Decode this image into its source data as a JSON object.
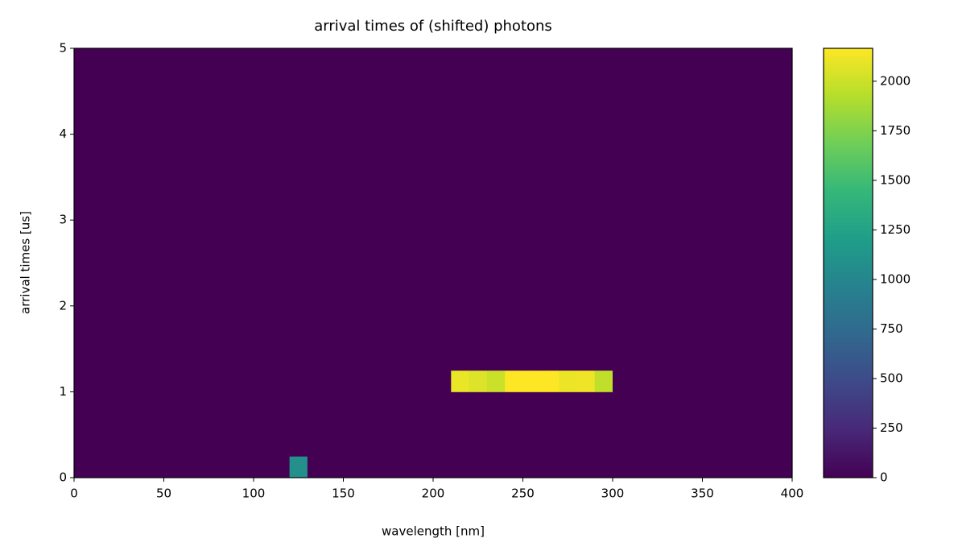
{
  "chart_data": {
    "type": "heatmap",
    "title": "arrival times of (shifted) photons",
    "x_label": "wavelength [nm]",
    "y_label": "arrival times [us]",
    "colormap": "viridis",
    "xbins": [
      0,
      10,
      20,
      30,
      40,
      50,
      60,
      70,
      80,
      90,
      100,
      110,
      120,
      130,
      140,
      150,
      160,
      170,
      180,
      190,
      200,
      210,
      220,
      230,
      240,
      250,
      260,
      270,
      280,
      290,
      300,
      310,
      320,
      330,
      340,
      350,
      360,
      370,
      380,
      390,
      400
    ],
    "ybins": [
      0,
      0.25,
      0.5,
      0.75,
      1,
      1.25,
      1.5,
      1.75,
      2,
      2.25,
      2.5,
      2.75,
      3,
      3.25,
      3.5,
      3.75,
      4,
      4.25,
      4.5,
      4.75,
      5
    ],
    "xlim": [
      0,
      400
    ],
    "xticks": [
      0,
      50,
      100,
      150,
      200,
      250,
      300,
      350,
      400
    ],
    "ylim": [
      0,
      5
    ],
    "yticks": [
      0,
      1,
      2,
      3,
      4,
      5
    ],
    "clim": [
      0,
      2166
    ],
    "cticks": [
      0,
      250,
      500,
      750,
      1000,
      1250,
      1500,
      1750,
      2000
    ],
    "z": [
      [
        0,
        0,
        0,
        0,
        0,
        0,
        0,
        0,
        0,
        0,
        0,
        0,
        1080,
        0,
        0,
        0,
        0,
        0,
        0,
        0,
        0,
        0,
        0,
        0,
        0,
        0,
        0,
        0,
        0,
        0,
        0,
        0,
        0,
        0,
        0,
        0,
        0,
        0,
        0,
        0
      ],
      [
        0,
        0,
        0,
        0,
        0,
        0,
        0,
        0,
        0,
        0,
        0,
        0,
        0,
        0,
        0,
        0,
        0,
        0,
        0,
        0,
        0,
        0,
        0,
        0,
        0,
        0,
        0,
        0,
        0,
        0,
        0,
        0,
        0,
        0,
        0,
        0,
        0,
        0,
        0,
        0
      ],
      [
        0,
        0,
        0,
        0,
        0,
        0,
        0,
        0,
        0,
        0,
        0,
        0,
        0,
        0,
        0,
        0,
        0,
        0,
        0,
        0,
        0,
        0,
        0,
        0,
        0,
        0,
        0,
        0,
        0,
        0,
        0,
        0,
        0,
        0,
        0,
        0,
        0,
        0,
        0,
        0
      ],
      [
        0,
        0,
        0,
        0,
        0,
        0,
        0,
        0,
        0,
        0,
        0,
        0,
        0,
        0,
        0,
        0,
        0,
        0,
        0,
        0,
        0,
        0,
        0,
        0,
        0,
        0,
        0,
        0,
        0,
        0,
        0,
        0,
        0,
        0,
        0,
        0,
        0,
        0,
        0,
        0
      ],
      [
        0,
        0,
        0,
        0,
        0,
        0,
        0,
        0,
        0,
        0,
        0,
        0,
        0,
        0,
        0,
        0,
        0,
        0,
        0,
        0,
        0,
        2100,
        2060,
        2000,
        2166,
        2166,
        2166,
        2110,
        2120,
        1960,
        0,
        0,
        0,
        0,
        0,
        0,
        0,
        0,
        0,
        0
      ],
      [
        0,
        0,
        0,
        0,
        0,
        0,
        0,
        0,
        0,
        0,
        0,
        0,
        0,
        0,
        0,
        0,
        0,
        0,
        0,
        0,
        0,
        0,
        0,
        0,
        0,
        0,
        0,
        0,
        0,
        0,
        0,
        0,
        0,
        0,
        0,
        0,
        0,
        0,
        0,
        0
      ],
      [
        0,
        0,
        0,
        0,
        0,
        0,
        0,
        0,
        0,
        0,
        0,
        0,
        0,
        0,
        0,
        0,
        0,
        0,
        0,
        0,
        0,
        0,
        0,
        0,
        0,
        0,
        0,
        0,
        0,
        0,
        0,
        0,
        0,
        0,
        0,
        0,
        0,
        0,
        0,
        0
      ],
      [
        0,
        0,
        0,
        0,
        0,
        0,
        0,
        0,
        0,
        0,
        0,
        0,
        0,
        0,
        0,
        0,
        0,
        0,
        0,
        0,
        0,
        0,
        0,
        0,
        0,
        0,
        0,
        0,
        0,
        0,
        0,
        0,
        0,
        0,
        0,
        0,
        0,
        0,
        0,
        0
      ],
      [
        0,
        0,
        0,
        0,
        0,
        0,
        0,
        0,
        0,
        0,
        0,
        0,
        0,
        0,
        0,
        0,
        0,
        0,
        0,
        0,
        0,
        0,
        0,
        0,
        0,
        0,
        0,
        0,
        0,
        0,
        0,
        0,
        0,
        0,
        0,
        0,
        0,
        0,
        0,
        0
      ],
      [
        0,
        0,
        0,
        0,
        0,
        0,
        0,
        0,
        0,
        0,
        0,
        0,
        0,
        0,
        0,
        0,
        0,
        0,
        0,
        0,
        0,
        0,
        0,
        0,
        0,
        0,
        0,
        0,
        0,
        0,
        0,
        0,
        0,
        0,
        0,
        0,
        0,
        0,
        0,
        0
      ],
      [
        0,
        0,
        0,
        0,
        0,
        0,
        0,
        0,
        0,
        0,
        0,
        0,
        0,
        0,
        0,
        0,
        0,
        0,
        0,
        0,
        0,
        0,
        0,
        0,
        0,
        0,
        0,
        0,
        0,
        0,
        0,
        0,
        0,
        0,
        0,
        0,
        0,
        0,
        0,
        0
      ],
      [
        0,
        0,
        0,
        0,
        0,
        0,
        0,
        0,
        0,
        0,
        0,
        0,
        0,
        0,
        0,
        0,
        0,
        0,
        0,
        0,
        0,
        0,
        0,
        0,
        0,
        0,
        0,
        0,
        0,
        0,
        0,
        0,
        0,
        0,
        0,
        0,
        0,
        0,
        0,
        0
      ],
      [
        0,
        0,
        0,
        0,
        0,
        0,
        0,
        0,
        0,
        0,
        0,
        0,
        0,
        0,
        0,
        0,
        0,
        0,
        0,
        0,
        0,
        0,
        0,
        0,
        0,
        0,
        0,
        0,
        0,
        0,
        0,
        0,
        0,
        0,
        0,
        0,
        0,
        0,
        0,
        0
      ],
      [
        0,
        0,
        0,
        0,
        0,
        0,
        0,
        0,
        0,
        0,
        0,
        0,
        0,
        0,
        0,
        0,
        0,
        0,
        0,
        0,
        0,
        0,
        0,
        0,
        0,
        0,
        0,
        0,
        0,
        0,
        0,
        0,
        0,
        0,
        0,
        0,
        0,
        0,
        0,
        0
      ],
      [
        0,
        0,
        0,
        0,
        0,
        0,
        0,
        0,
        0,
        0,
        0,
        0,
        0,
        0,
        0,
        0,
        0,
        0,
        0,
        0,
        0,
        0,
        0,
        0,
        0,
        0,
        0,
        0,
        0,
        0,
        0,
        0,
        0,
        0,
        0,
        0,
        0,
        0,
        0,
        0
      ],
      [
        0,
        0,
        0,
        0,
        0,
        0,
        0,
        0,
        0,
        0,
        0,
        0,
        0,
        0,
        0,
        0,
        0,
        0,
        0,
        0,
        0,
        0,
        0,
        0,
        0,
        0,
        0,
        0,
        0,
        0,
        0,
        0,
        0,
        0,
        0,
        0,
        0,
        0,
        0,
        0
      ],
      [
        0,
        0,
        0,
        0,
        0,
        0,
        0,
        0,
        0,
        0,
        0,
        0,
        0,
        0,
        0,
        0,
        0,
        0,
        0,
        0,
        0,
        0,
        0,
        0,
        0,
        0,
        0,
        0,
        0,
        0,
        0,
        0,
        0,
        0,
        0,
        0,
        0,
        0,
        0,
        0
      ],
      [
        0,
        0,
        0,
        0,
        0,
        0,
        0,
        0,
        0,
        0,
        0,
        0,
        0,
        0,
        0,
        0,
        0,
        0,
        0,
        0,
        0,
        0,
        0,
        0,
        0,
        0,
        0,
        0,
        0,
        0,
        0,
        0,
        0,
        0,
        0,
        0,
        0,
        0,
        0,
        0
      ],
      [
        0,
        0,
        0,
        0,
        0,
        0,
        0,
        0,
        0,
        0,
        0,
        0,
        0,
        0,
        0,
        0,
        0,
        0,
        0,
        0,
        0,
        0,
        0,
        0,
        0,
        0,
        0,
        0,
        0,
        0,
        0,
        0,
        0,
        0,
        0,
        0,
        0,
        0,
        0,
        0
      ],
      [
        0,
        0,
        0,
        0,
        0,
        0,
        0,
        0,
        0,
        0,
        0,
        0,
        0,
        0,
        0,
        0,
        0,
        0,
        0,
        0,
        0,
        0,
        0,
        0,
        0,
        0,
        0,
        0,
        0,
        0,
        0,
        0,
        0,
        0,
        0,
        0,
        0,
        0,
        0,
        0
      ]
    ]
  }
}
